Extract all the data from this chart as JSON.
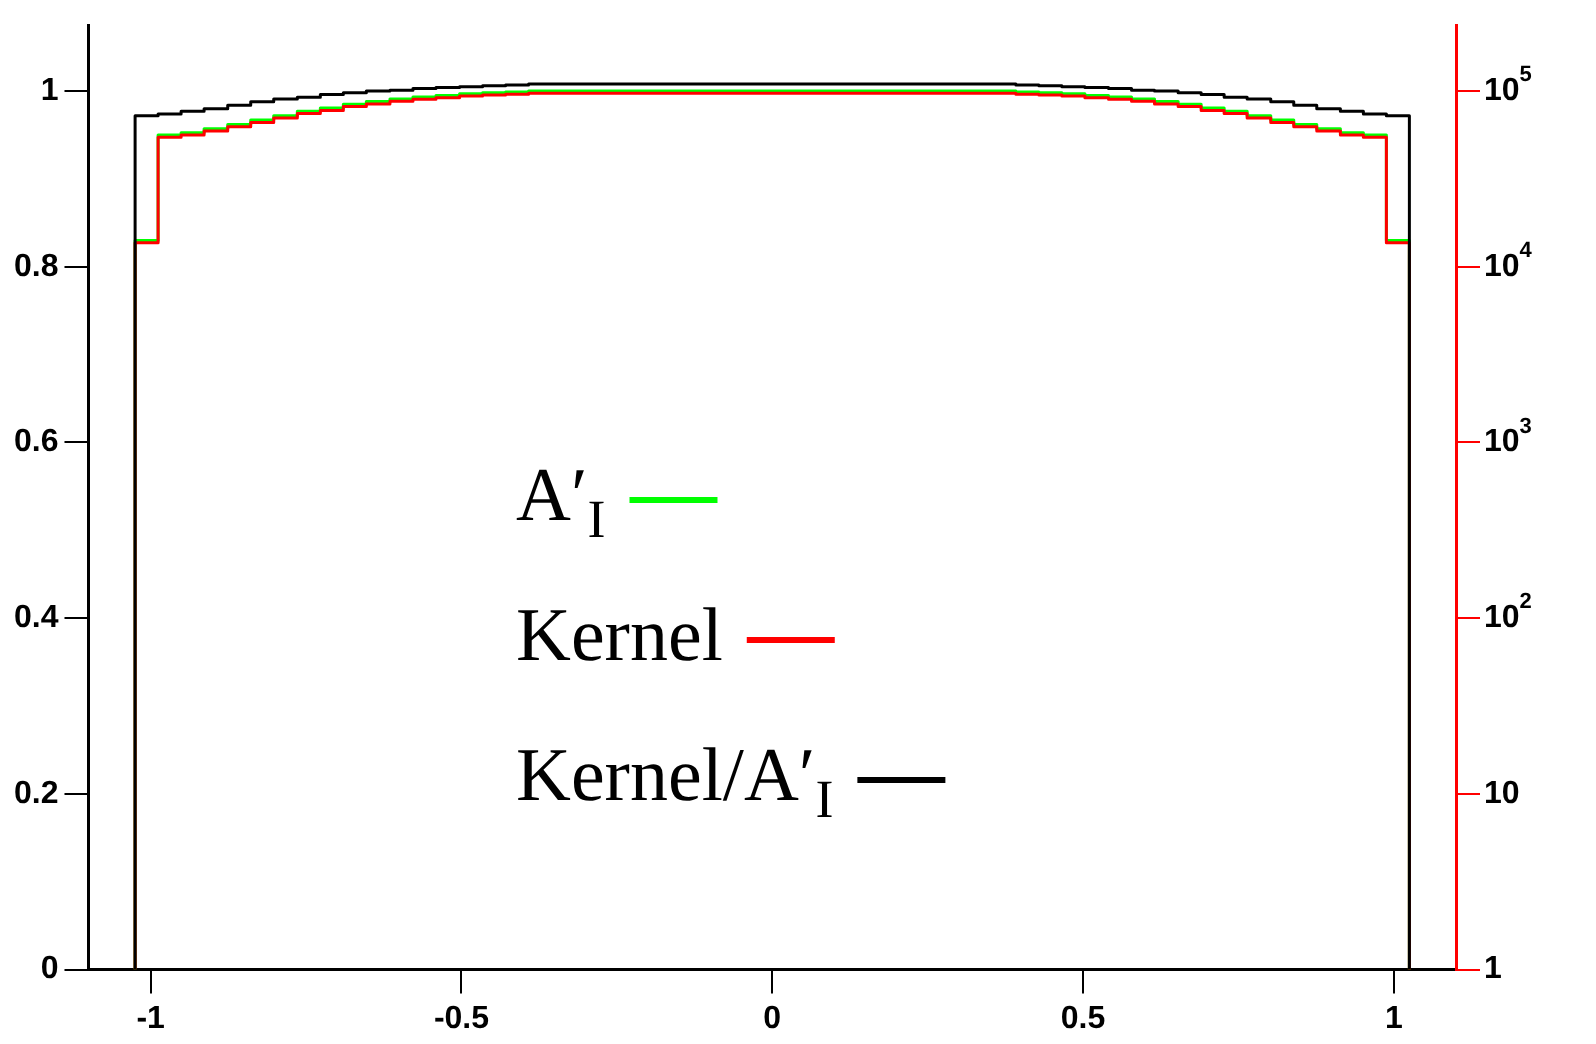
{
  "chart_data": {
    "type": "histogram",
    "bins": [
      -1.025,
      -0.988,
      -0.951,
      -0.914,
      -0.876,
      -0.839,
      -0.802,
      -0.764,
      -0.727,
      -0.69,
      -0.653,
      -0.615,
      -0.578,
      -0.541,
      -0.503,
      -0.466,
      -0.429,
      -0.392,
      -0.354,
      -0.317,
      -0.28,
      -0.242,
      -0.205,
      -0.168,
      -0.131,
      -0.093,
      -0.056,
      -0.019,
      0.019,
      0.056,
      0.093,
      0.131,
      0.168,
      0.205,
      0.242,
      0.28,
      0.317,
      0.354,
      0.392,
      0.429,
      0.466,
      0.503,
      0.541,
      0.578,
      0.615,
      0.653,
      0.69,
      0.727,
      0.764,
      0.802,
      0.839,
      0.876,
      0.914,
      0.951,
      0.988,
      1.025
    ],
    "series": [
      {
        "name": "A′$_{I}$",
        "color": "#00ff00",
        "axis": "y2",
        "values": [
          14100,
          56200,
          57900,
          61000,
          64500,
          68400,
          72400,
          76700,
          80000,
          84100,
          87100,
          90200,
          92500,
          94400,
          96600,
          97700,
          98900,
          100000,
          100000,
          100000,
          100000,
          100000,
          100000,
          100000,
          100000,
          100000,
          100000,
          100000,
          100000,
          100000,
          100000,
          100000,
          100000,
          100000,
          100000,
          100000,
          100000,
          100000,
          98900,
          97700,
          96600,
          94400,
          92500,
          90200,
          87100,
          84100,
          80000,
          76700,
          72400,
          68400,
          64500,
          61000,
          57900,
          56200,
          14100
        ]
      },
      {
        "name": "Kernel",
        "color": "#ff0000",
        "axis": "y2",
        "values": [
          13700,
          54500,
          56200,
          59200,
          62600,
          66300,
          70200,
          74400,
          77600,
          81600,
          84500,
          87500,
          89700,
          91600,
          93700,
          94800,
          95900,
          97000,
          97000,
          97000,
          97000,
          97000,
          97000,
          97000,
          97000,
          97000,
          97000,
          97000,
          97000,
          97000,
          97000,
          97000,
          97000,
          97000,
          97000,
          97000,
          97000,
          97000,
          95900,
          94800,
          93700,
          91600,
          89700,
          87500,
          84500,
          81600,
          77600,
          74400,
          70200,
          66300,
          62600,
          59200,
          56200,
          54500,
          13700
        ]
      },
      {
        "name": "Kernel/A′$_{I}$",
        "color": "#000000",
        "values": [
          0.972,
          0.974,
          0.977,
          0.98,
          0.984,
          0.988,
          0.991,
          0.993,
          0.996,
          0.998,
          1.0,
          1.001,
          1.003,
          1.004,
          1.005,
          1.006,
          1.007,
          1.008,
          1.008,
          1.008,
          1.008,
          1.008,
          1.008,
          1.008,
          1.008,
          1.008,
          1.008,
          1.008,
          1.008,
          1.008,
          1.008,
          1.008,
          1.008,
          1.008,
          1.008,
          1.008,
          1.008,
          1.008,
          1.007,
          1.006,
          1.005,
          1.004,
          1.003,
          1.001,
          1.0,
          0.998,
          0.996,
          0.993,
          0.991,
          0.988,
          0.984,
          0.98,
          0.977,
          0.974,
          0.972
        ]
      }
    ],
    "xlim": [
      -1.1,
      1.1
    ],
    "xticks": [
      -1,
      -0.5,
      0,
      0.5,
      1
    ],
    "ylim": [
      0,
      1.075
    ],
    "yticks": [
      0,
      0.2,
      0.4,
      0.6,
      0.8,
      1
    ],
    "y2lim": [
      1,
      237000
    ],
    "y2ticks": [
      1,
      10,
      {
        "value": 100,
        "label": "10$^{2}$"
      },
      {
        "value": 1000,
        "label": "10$^{3}$"
      },
      {
        "value": 10000,
        "label": "10$^{4}$"
      },
      {
        "value": 100000,
        "label": "10$^{5}$"
      }
    ],
    "log": "y2",
    "grid": false,
    "legend": "left"
  }
}
